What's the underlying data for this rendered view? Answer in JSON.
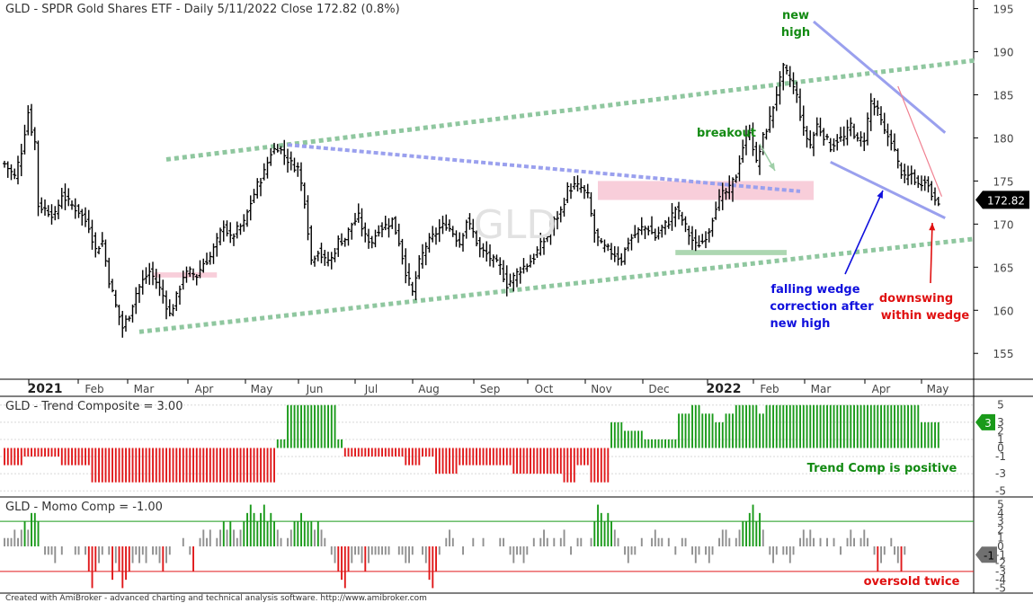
{
  "colors": {
    "bar": "#000000",
    "green": "#1a9a1a",
    "red": "#e0191b",
    "grey": "#909090",
    "wedge_blue": "#9aa0ee",
    "channel_green": "#8fc79f",
    "zone_pink": "#f7c6d4",
    "support_green": "#9fd0a5",
    "note_blue": "#1010dd",
    "note_green": "#128a12",
    "note_red": "#e01010"
  },
  "chart_data": [
    {
      "type": "line",
      "title": "GLD - SPDR Gold Shares ETF - Daily 5/11/2022 Close 172.82 (0.8%)",
      "watermark": "GLD",
      "series_style": "ohlc-bars",
      "ylim": [
        152,
        196
      ],
      "y_ticks": [
        155,
        160,
        165,
        170,
        175,
        180,
        185,
        190,
        195
      ],
      "x_ticks": [
        "2021",
        "Feb",
        "Mar",
        "Apr",
        "May",
        "Jun",
        "Jul",
        "Aug",
        "Sep",
        "Oct",
        "Nov",
        "Dec",
        "2022",
        "Feb",
        "Mar",
        "Apr",
        "May"
      ],
      "last_value_badge": "172.82",
      "grid": false,
      "anchors": [
        [
          0,
          177.0
        ],
        [
          3,
          175.5
        ],
        [
          5,
          178.5
        ],
        [
          7,
          183
        ],
        [
          8,
          181
        ],
        [
          9,
          179.5
        ],
        [
          10,
          172.2
        ],
        [
          15,
          171
        ],
        [
          17,
          173.5
        ],
        [
          19,
          172.5
        ],
        [
          22,
          171.5
        ],
        [
          25,
          169.8
        ],
        [
          27,
          167
        ],
        [
          29,
          168
        ],
        [
          31,
          163.5
        ],
        [
          33,
          160.5
        ],
        [
          35,
          158
        ],
        [
          37,
          159.5
        ],
        [
          39,
          162
        ],
        [
          41,
          163.4
        ],
        [
          43,
          164.5
        ],
        [
          45,
          163.3
        ],
        [
          47,
          161.7
        ],
        [
          49,
          159.5
        ],
        [
          51,
          161.5
        ],
        [
          53,
          164
        ],
        [
          55,
          164.4
        ],
        [
          57,
          164
        ],
        [
          59,
          165.5
        ],
        [
          61,
          166.2
        ],
        [
          63,
          168
        ],
        [
          65,
          170
        ],
        [
          67,
          168.3
        ],
        [
          69,
          169.3
        ],
        [
          71,
          170.1
        ],
        [
          73,
          172.5
        ],
        [
          75,
          174.5
        ],
        [
          77,
          176
        ],
        [
          79,
          178.3
        ],
        [
          81,
          179
        ],
        [
          83,
          178
        ],
        [
          85,
          177
        ],
        [
          87,
          176.5
        ],
        [
          89,
          172.8
        ],
        [
          91,
          165.8
        ],
        [
          93,
          167
        ],
        [
          95,
          165.7
        ],
        [
          97,
          166
        ],
        [
          99,
          168
        ],
        [
          101,
          168.3
        ],
        [
          103,
          170
        ],
        [
          105,
          170.8
        ],
        [
          107,
          168.5
        ],
        [
          109,
          168
        ],
        [
          111,
          169.5
        ],
        [
          113,
          169.8
        ],
        [
          115,
          170.4
        ],
        [
          117,
          168
        ],
        [
          119,
          164.5
        ],
        [
          121,
          162
        ],
        [
          123,
          165.5
        ],
        [
          125,
          167.5
        ],
        [
          127,
          168.5
        ],
        [
          129,
          169.5
        ],
        [
          131,
          170
        ],
        [
          133,
          169
        ],
        [
          135,
          167.8
        ],
        [
          137,
          170.4
        ],
        [
          139,
          169
        ],
        [
          141,
          167
        ],
        [
          143,
          166.5
        ],
        [
          145,
          165.7
        ],
        [
          147,
          165
        ],
        [
          149,
          163
        ],
        [
          151,
          163.8
        ],
        [
          153,
          164.8
        ],
        [
          155,
          165.3
        ],
        [
          157,
          166.2
        ],
        [
          159,
          167.5
        ],
        [
          161,
          168.6
        ],
        [
          163,
          170.3
        ],
        [
          165,
          171.5
        ],
        [
          167,
          174
        ],
        [
          169,
          174.4
        ],
        [
          171,
          174.2
        ],
        [
          173,
          173.2
        ],
        [
          175,
          169
        ],
        [
          177,
          167.5
        ],
        [
          179,
          167
        ],
        [
          181,
          166.5
        ],
        [
          183,
          165.9
        ],
        [
          185,
          168
        ],
        [
          187,
          168.8
        ],
        [
          189,
          169.5
        ],
        [
          191,
          169.5
        ],
        [
          193,
          168.5
        ],
        [
          195,
          169.5
        ],
        [
          197,
          170.3
        ],
        [
          199,
          171.8
        ],
        [
          201,
          170.5
        ],
        [
          203,
          168.8
        ],
        [
          205,
          167.5
        ],
        [
          207,
          168
        ],
        [
          209,
          169.4
        ],
        [
          211,
          172.2
        ],
        [
          213,
          173.4
        ],
        [
          215,
          174
        ],
        [
          217,
          175.7
        ],
        [
          219,
          179
        ],
        [
          221,
          181
        ],
        [
          223,
          177
        ],
        [
          225,
          180
        ],
        [
          227,
          182.2
        ],
        [
          229,
          185.2
        ],
        [
          231,
          188
        ],
        [
          233,
          186.8
        ],
        [
          235,
          184.8
        ],
        [
          237,
          180.8
        ],
        [
          239,
          179.2
        ],
        [
          241,
          181.5
        ],
        [
          243,
          180.3
        ],
        [
          245,
          179
        ],
        [
          247,
          179.8
        ],
        [
          249,
          180
        ],
        [
          251,
          181.5
        ],
        [
          253,
          179.6
        ],
        [
          255,
          180
        ],
        [
          257,
          184.2
        ],
        [
          259,
          183
        ],
        [
          261,
          180.6
        ],
        [
          263,
          179.8
        ],
        [
          265,
          177
        ],
        [
          267,
          175.2
        ],
        [
          269,
          175.8
        ],
        [
          271,
          174.5
        ],
        [
          273,
          175.3
        ],
        [
          275,
          173.4
        ],
        [
          277,
          172.82
        ]
      ],
      "bars": {
        "count": 278,
        "x_at_first_bar": 5,
        "x_per_bar": 3.75
      },
      "trendlines": [
        {
          "name": "upper-channel",
          "style": "dotted-green",
          "from": [
            48,
            177.5
          ],
          "to": [
            288,
            189.0
          ]
        },
        {
          "name": "lower-channel",
          "style": "dotted-green",
          "from": [
            40,
            157.5
          ],
          "to": [
            288,
            168.3
          ]
        },
        {
          "name": "declining-resistance",
          "style": "dotted-blue",
          "from": [
            84,
            179.2
          ],
          "to": [
            236,
            173.8
          ]
        },
        {
          "name": "wedge-top",
          "style": "solid-blue",
          "from": [
            240,
            193.5
          ],
          "to": [
            279,
            180.6
          ]
        },
        {
          "name": "wedge-bottom",
          "style": "solid-blue",
          "from": [
            245,
            177.2
          ],
          "to": [
            279,
            170.7
          ]
        },
        {
          "name": "downswing",
          "style": "thin-red",
          "from": [
            265,
            186.0
          ],
          "to": [
            278,
            173.2
          ]
        }
      ],
      "zones": [
        {
          "name": "support-zone-early",
          "from": 44,
          "to": 63,
          "low": 163.8,
          "high": 164.4,
          "fill": "pink"
        },
        {
          "name": "resistance-zone",
          "from": 176,
          "to": 240,
          "low": 172.8,
          "high": 175.0,
          "fill": "pink"
        },
        {
          "name": "support-zone-late",
          "from": 199,
          "to": 232,
          "low": 166.4,
          "high": 167.0,
          "fill": "green"
        }
      ],
      "annotations": [
        {
          "name": "new-high-note",
          "lines": [
            "new",
            "high"
          ],
          "color": "green"
        },
        {
          "name": "breakout-note",
          "lines": [
            "breakout"
          ],
          "color": "green"
        },
        {
          "name": "falling-wedge-note",
          "lines": [
            "falling wedge",
            "correction after",
            "new high"
          ],
          "color": "blue"
        },
        {
          "name": "downswing-note",
          "lines": [
            "downswing",
            "within wedge"
          ],
          "color": "red"
        }
      ]
    },
    {
      "type": "bar",
      "title": "GLD - Trend Composite = 3.00",
      "ylim": [
        -5.6,
        5.6
      ],
      "y_ticks": [
        5,
        3,
        2,
        1,
        0,
        -1,
        -3,
        -5
      ],
      "last_value_badge": "3",
      "note": "Trend Comp is positive",
      "segments": [
        [
          0,
          6,
          -2
        ],
        [
          6,
          17,
          -1
        ],
        [
          17,
          26,
          -2
        ],
        [
          26,
          81,
          -4
        ],
        [
          81,
          84,
          1
        ],
        [
          84,
          99,
          5
        ],
        [
          99,
          101,
          1
        ],
        [
          101,
          119,
          -1
        ],
        [
          119,
          124,
          -2
        ],
        [
          124,
          128,
          -1
        ],
        [
          128,
          135,
          -3
        ],
        [
          135,
          151,
          -2
        ],
        [
          151,
          166,
          -3
        ],
        [
          166,
          170,
          -4
        ],
        [
          170,
          174,
          -2
        ],
        [
          174,
          180,
          -4
        ],
        [
          180,
          184,
          3
        ],
        [
          184,
          190,
          2
        ],
        [
          190,
          200,
          1
        ],
        [
          200,
          204,
          4
        ],
        [
          204,
          207,
          5
        ],
        [
          207,
          211,
          4
        ],
        [
          211,
          214,
          3
        ],
        [
          214,
          217,
          4
        ],
        [
          217,
          224,
          5
        ],
        [
          224,
          230,
          4
        ],
        [
          230,
          226,
          5
        ],
        [
          226,
          272,
          5
        ],
        [
          272,
          278,
          3
        ]
      ]
    },
    {
      "type": "bar",
      "title": "GLD - Momo Comp = -1.00",
      "ylim": [
        -5.6,
        5.6
      ],
      "y_ticks": [
        5,
        4,
        3,
        2,
        1,
        0,
        -1,
        -2,
        -3,
        -4,
        -5
      ],
      "last_value_badge": "-1",
      "note": "oversold twice",
      "reference_lines": [
        3,
        -3
      ],
      "values": [
        1,
        1,
        1,
        2,
        1,
        2,
        3,
        2,
        4,
        4,
        3,
        0,
        -1,
        -1,
        -1,
        -2,
        0,
        -1,
        0,
        0,
        0,
        -1,
        -1,
        0,
        -1,
        -3,
        -5,
        -3,
        -2,
        -1,
        0,
        -1,
        -4,
        -2,
        -3,
        -5,
        -4,
        -3,
        -2,
        -1,
        -2,
        -1,
        -2,
        0,
        -1,
        -1,
        -2,
        -3,
        -2,
        -1,
        0,
        0,
        0,
        1,
        0,
        -1,
        -3,
        0,
        1,
        2,
        1,
        2,
        0,
        1,
        2,
        3,
        2,
        3,
        2,
        1,
        2,
        3,
        4,
        5,
        4,
        3,
        4,
        5,
        3,
        4,
        3,
        2,
        1,
        0,
        1,
        2,
        3,
        3,
        4,
        3,
        3,
        3,
        2,
        3,
        2,
        1,
        0,
        -1,
        -2,
        -3,
        -4,
        -5,
        -3,
        -2,
        -1,
        -1,
        -2,
        -3,
        -2,
        -1,
        -1,
        -1,
        -1,
        -1,
        -1,
        0,
        0,
        -1,
        -1,
        -2,
        -2,
        -1,
        0,
        0,
        -1,
        -2,
        -4,
        -5,
        -3,
        -1,
        0,
        1,
        2,
        1,
        0,
        0,
        -1,
        0,
        0,
        1,
        0,
        0,
        1,
        0,
        0,
        0,
        0,
        1,
        1,
        0,
        -1,
        -2,
        -1,
        -1,
        -2,
        -1,
        0,
        1,
        0,
        1,
        2,
        1,
        0,
        1,
        0,
        1,
        2,
        0,
        -1,
        0,
        1,
        1,
        0,
        0,
        1,
        3,
        5,
        4,
        3,
        4,
        3,
        2,
        1,
        0,
        -1,
        -2,
        -1,
        -1,
        0,
        1,
        0,
        0,
        1,
        2,
        1,
        1,
        0,
        1,
        0,
        -1,
        0,
        1,
        1,
        0,
        -1,
        -2,
        -1,
        0,
        -1,
        -2,
        -1,
        0,
        1,
        2,
        2,
        1,
        0,
        1,
        2,
        3,
        3,
        4,
        5,
        3,
        4,
        2,
        0,
        -1,
        -2,
        -1,
        0,
        -1,
        -1,
        -2,
        -1,
        0,
        1,
        2,
        1,
        2,
        1,
        0,
        1,
        0,
        1,
        0,
        1,
        0,
        -1,
        0,
        1,
        2,
        1,
        0,
        1,
        2,
        1,
        0,
        -1,
        -3,
        -2,
        -1,
        0,
        1,
        -1,
        -2,
        -3,
        -1
      ]
    }
  ],
  "footer": {
    "credit": "Created with AmiBroker - advanced charting and technical analysis software. http://www.amibroker.com"
  }
}
